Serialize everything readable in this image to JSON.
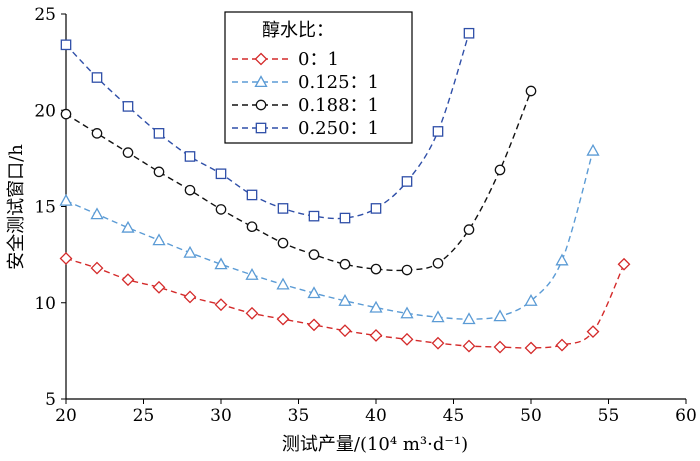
{
  "chart_data": {
    "type": "line",
    "xlabel": "测试产量/(10⁴ m³·d⁻¹)",
    "ylabel": "安全测试窗口/h",
    "xlim": [
      20,
      60
    ],
    "ylim": [
      5,
      25
    ],
    "x_ticks": [
      "20",
      "25",
      "30",
      "35",
      "40",
      "45",
      "50",
      "55",
      "60"
    ],
    "y_ticks": [
      "5",
      "10",
      "15",
      "20",
      "25"
    ],
    "grid": false,
    "legend": {
      "title": "醇水比：",
      "placement": "top-center"
    },
    "series": [
      {
        "name": "0：1",
        "color": "#d42a2a",
        "marker": "diamond",
        "x": [
          20,
          22,
          24,
          26,
          28,
          30,
          32,
          34,
          36,
          38,
          40,
          42,
          44,
          46,
          48,
          50,
          52,
          54,
          56
        ],
        "y": [
          12.3,
          11.8,
          11.2,
          10.8,
          10.3,
          9.9,
          9.45,
          9.15,
          8.85,
          8.55,
          8.3,
          8.1,
          7.9,
          7.75,
          7.7,
          7.65,
          7.8,
          8.5,
          12.0
        ]
      },
      {
        "name": "0.125：1",
        "color": "#5b9bd5",
        "marker": "triangle",
        "x": [
          20,
          22,
          24,
          26,
          28,
          30,
          32,
          34,
          36,
          38,
          40,
          42,
          44,
          46,
          48,
          50,
          52,
          54
        ],
        "y": [
          15.3,
          14.6,
          13.9,
          13.25,
          12.6,
          12.0,
          11.45,
          10.95,
          10.5,
          10.1,
          9.75,
          9.45,
          9.25,
          9.15,
          9.3,
          10.1,
          12.2,
          17.9
        ]
      },
      {
        "name": "0.188：1",
        "color": "#111111",
        "marker": "circle",
        "x": [
          20,
          22,
          24,
          26,
          28,
          30,
          32,
          34,
          36,
          38,
          40,
          42,
          44,
          46,
          48,
          50
        ],
        "y": [
          19.8,
          18.8,
          17.8,
          16.8,
          15.85,
          14.85,
          13.95,
          13.1,
          12.5,
          12.0,
          11.75,
          11.7,
          12.05,
          13.8,
          16.9,
          21.0
        ]
      },
      {
        "name": "0.250：1",
        "color": "#2f4fa8",
        "marker": "square",
        "x": [
          20,
          22,
          24,
          26,
          28,
          30,
          32,
          34,
          36,
          38,
          40,
          42,
          44,
          46
        ],
        "y": [
          23.4,
          21.7,
          20.2,
          18.8,
          17.6,
          16.7,
          15.6,
          14.9,
          14.5,
          14.4,
          14.9,
          16.3,
          18.9,
          24.0
        ]
      }
    ]
  }
}
